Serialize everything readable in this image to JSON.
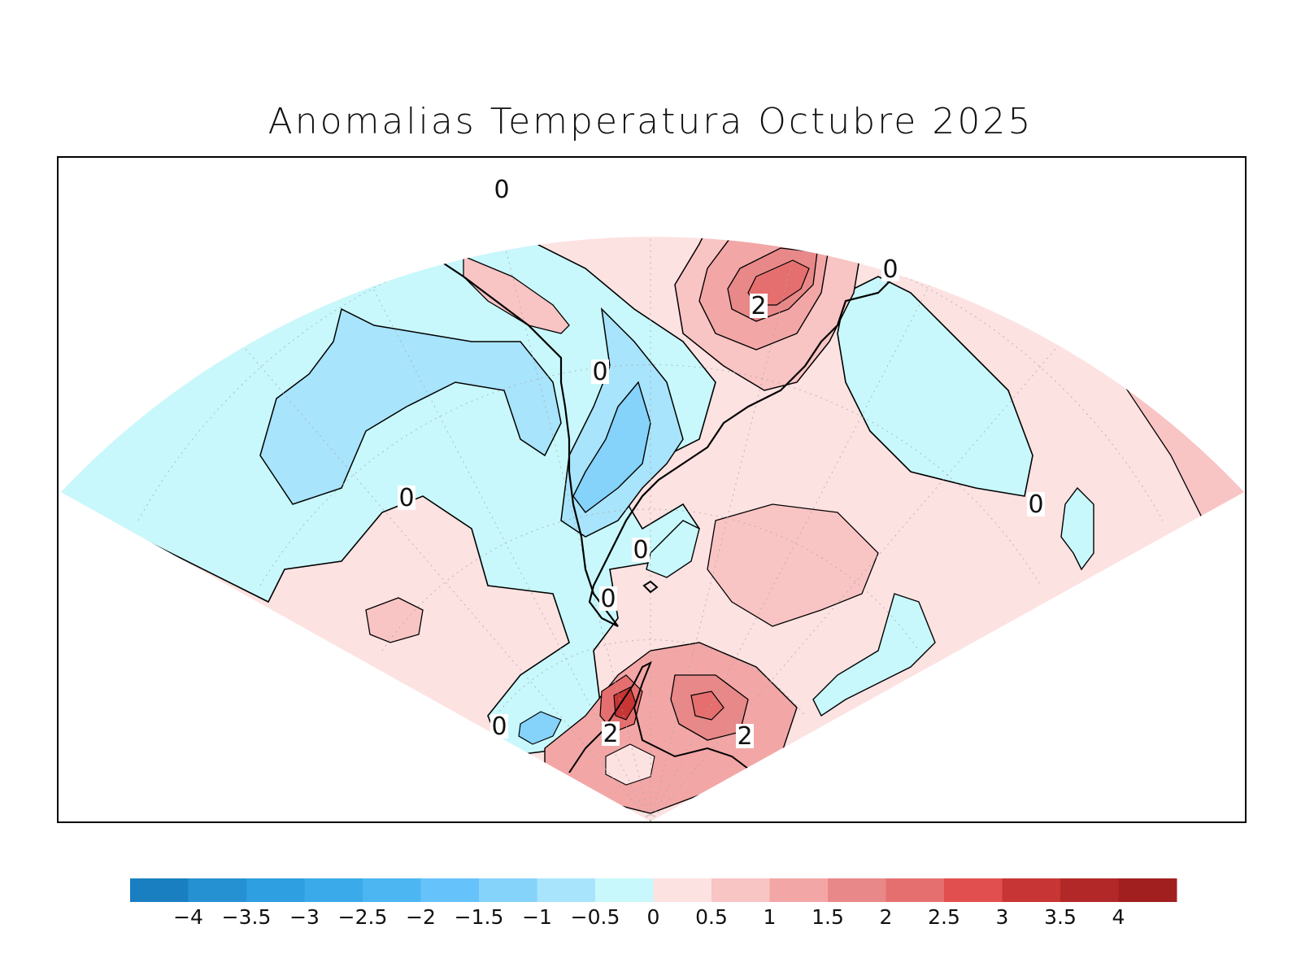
{
  "title": "Anomalias Temperatura Octubre 2025",
  "colorbar": {
    "colors": [
      "#1a7fc0",
      "#2591d3",
      "#2e9fe0",
      "#3aaaea",
      "#4cb6f2",
      "#66c2fa",
      "#85d2fb",
      "#a8e4fb",
      "#c8f8fb",
      "#fde2e2",
      "#f9c4c4",
      "#f3a6a6",
      "#e88888",
      "#e56f6f",
      "#e24f4f",
      "#c73535",
      "#b22828",
      "#a11f1f"
    ],
    "tick_labels": [
      "−4",
      "−3.5",
      "−3",
      "−2.5",
      "−2",
      "−1.5",
      "−1",
      "−0.5",
      "0",
      "0.5",
      "1",
      "1.5",
      "2",
      "2.5",
      "3",
      "3.5",
      "4"
    ]
  },
  "contour_labels": [
    "0",
    "0",
    "0",
    "0",
    "0",
    "0",
    "0",
    "0",
    "2",
    "2",
    "2"
  ]
}
